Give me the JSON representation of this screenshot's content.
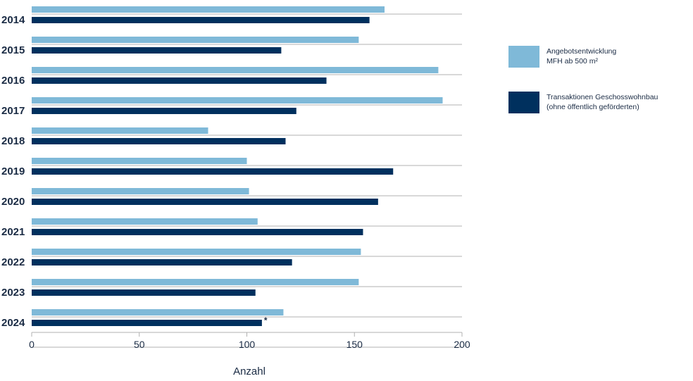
{
  "chart_data": {
    "type": "bar",
    "orientation": "horizontal",
    "categories": [
      "2014",
      "2015",
      "2016",
      "2017",
      "2018",
      "2019",
      "2020",
      "2021",
      "2022",
      "2023",
      "2024"
    ],
    "series": [
      {
        "name": "Angebotsentwicklung MFH ab 500 m²",
        "legend_lines": [
          "Angebotsentwicklung",
          "MFH ab 500 m²"
        ],
        "color": "#7fb9d8",
        "values": [
          164,
          152,
          189,
          191,
          82,
          100,
          101,
          105,
          153,
          152,
          117
        ]
      },
      {
        "name": "Transaktionen Geschosswohnbau (ohne öffentlich geförderten)",
        "legend_lines": [
          "Transaktionen Geschosswohnbau",
          "(ohne öffentlich geförderten)"
        ],
        "color": "#00305e",
        "values": [
          157,
          116,
          137,
          123,
          118,
          168,
          161,
          154,
          121,
          104,
          107
        ]
      }
    ],
    "annotations": [
      {
        "category": "2024",
        "series": 1,
        "text": "*"
      }
    ],
    "xlabel": "Anzahl",
    "ylabel": "",
    "xlim": [
      0,
      200
    ],
    "xticks": [
      0,
      50,
      100,
      150,
      200
    ],
    "grid": "horizontal separators between categories",
    "legend": "right"
  }
}
